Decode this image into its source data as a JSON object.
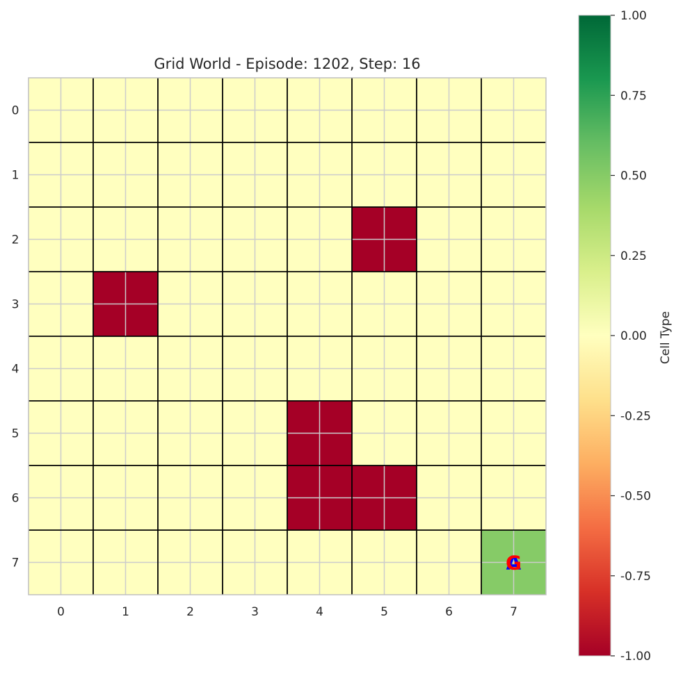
{
  "chart_data": {
    "type": "heatmap",
    "title": "Grid World - Episode: 1202, Step: 16",
    "x_ticks": [
      "0",
      "1",
      "2",
      "3",
      "4",
      "5",
      "6",
      "7"
    ],
    "y_ticks": [
      "0",
      "1",
      "2",
      "3",
      "4",
      "5",
      "6",
      "7"
    ],
    "values": [
      [
        0,
        0,
        0,
        0,
        0,
        0,
        0,
        0
      ],
      [
        0,
        0,
        0,
        0,
        0,
        0,
        0,
        0
      ],
      [
        0,
        0,
        0,
        0,
        0,
        -1,
        0,
        0
      ],
      [
        0,
        -1,
        0,
        0,
        0,
        0,
        0,
        0
      ],
      [
        0,
        0,
        0,
        0,
        0,
        0,
        0,
        0
      ],
      [
        0,
        0,
        0,
        0,
        -1,
        0,
        0,
        0
      ],
      [
        0,
        0,
        0,
        0,
        -1,
        -1,
        0,
        0
      ],
      [
        0,
        0,
        0,
        0,
        0,
        0,
        0,
        0.5
      ]
    ],
    "vmin": -1.0,
    "vmax": 1.0,
    "colormap": "RdYlGn",
    "grid": true,
    "colorbar": {
      "label": "Cell Type",
      "ticks": [
        "1.00",
        "0.75",
        "0.50",
        "0.25",
        "0.00",
        "-0.25",
        "-0.50",
        "-0.75",
        "-1.00"
      ],
      "tick_values": [
        1.0,
        0.75,
        0.5,
        0.25,
        0.0,
        -0.25,
        -0.5,
        -0.75,
        -1.0
      ]
    },
    "markers": [
      {
        "label": "A",
        "row": 7,
        "col": 7,
        "color": "#0000ff"
      },
      {
        "label": "G",
        "row": 7,
        "col": 7,
        "color": "#ff0000"
      }
    ]
  }
}
